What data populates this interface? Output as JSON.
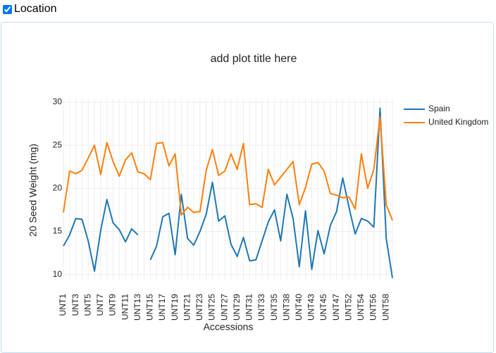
{
  "checkbox": {
    "label": "Location",
    "checked": true
  },
  "chart_data": {
    "type": "line",
    "title": "add plot title here",
    "x_label": "Accessions",
    "y_label": "20  Seed  Weight (mg)",
    "categories": [
      "UNT1",
      null,
      "UNT3",
      null,
      "UNT5",
      null,
      "UNT7",
      null,
      "UNT9",
      null,
      "UNT11",
      null,
      "UNT13",
      null,
      "UNT15",
      null,
      "UNT17",
      null,
      "UNT19",
      null,
      "UNT21",
      null,
      "UNT23",
      null,
      "UNT25",
      null,
      "UNT27",
      null,
      "UNT29",
      null,
      "UNT31",
      null,
      "UNT33",
      null,
      "UNT35",
      null,
      "UNT38",
      null,
      "UNT40",
      null,
      "UNT43",
      null,
      "UNT45",
      null,
      "UNT47",
      null,
      "UNT52",
      null,
      "UNT54",
      null,
      "UNT56",
      null,
      "UNT58",
      null
    ],
    "series": [
      {
        "name": "Spain",
        "color": "#1f77b4",
        "values": [
          13.3,
          14.6,
          16.5,
          16.4,
          13.9,
          10.4,
          15.1,
          18.7,
          16.0,
          15.2,
          13.8,
          15.3,
          14.6,
          null,
          11.7,
          13.3,
          16.7,
          17.1,
          12.3,
          19.3,
          14.2,
          13.4,
          15.0,
          17.0,
          20.7,
          16.2,
          16.8,
          13.5,
          12.1,
          14.3,
          11.6,
          11.7,
          13.9,
          16.1,
          17.5,
          13.9,
          19.3,
          16.5,
          10.9,
          17.4,
          10.6,
          15.1,
          12.4,
          15.7,
          17.3,
          21.2,
          17.8,
          14.7,
          16.5,
          16.2,
          15.5,
          29.3,
          14.2,
          9.6
        ]
      },
      {
        "name": "United Kingdom",
        "color": "#ff7f0e",
        "values": [
          17.2,
          22.0,
          21.7,
          22.1,
          23.5,
          25.0,
          21.6,
          25.3,
          23.1,
          21.4,
          23.3,
          24.1,
          21.9,
          21.7,
          21.0,
          25.2,
          25.3,
          22.6,
          24.0,
          16.9,
          17.8,
          17.2,
          17.3,
          22.1,
          24.5,
          21.5,
          22.0,
          24.0,
          22.2,
          25.2,
          18.1,
          18.2,
          17.8,
          22.2,
          20.4,
          21.3,
          22.2,
          23.1,
          18.1,
          20.1,
          22.8,
          23.0,
          22.0,
          19.4,
          19.2,
          18.9,
          19.0,
          17.6,
          24.0,
          20.0,
          22.2,
          28.3,
          18.1,
          16.3
        ]
      }
    ],
    "ylim": [
      9.4,
      30.4
    ],
    "yticks": [
      10,
      15,
      20,
      25,
      30
    ],
    "grid": true,
    "legend": "top-right"
  }
}
